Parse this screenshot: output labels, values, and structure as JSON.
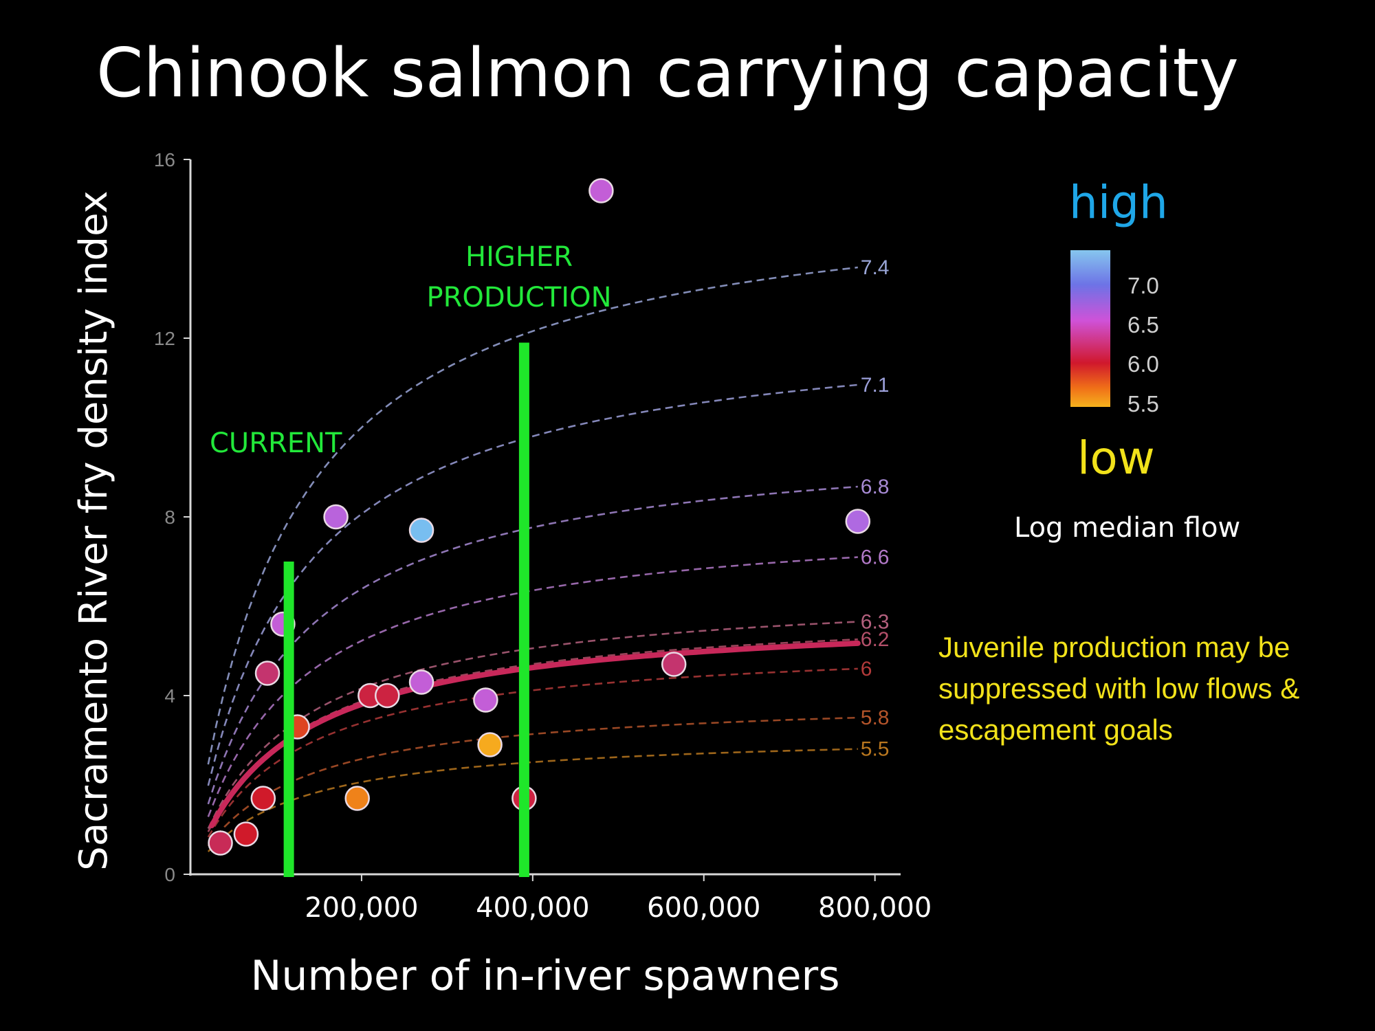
{
  "title": "Chinook salmon carrying capacity",
  "note": "Juvenile production may be suppressed with low flows & escapement goals",
  "legend": {
    "high": "high",
    "low": "low",
    "caption": "Log median flow",
    "ticks": [
      "7.0",
      "6.5",
      "6.0",
      "5.5"
    ]
  },
  "annotations": {
    "current": "CURRENT",
    "higher_1": "HIGHER",
    "higher_2": "PRODUCTION"
  },
  "colors": {
    "current_line": "#1fe62a",
    "fit_curve": "#c8285a"
  },
  "chart_data": {
    "type": "scatter",
    "xlabel": "Number of in-river spawners",
    "ylabel": "Sacramento River fry density index",
    "xlim": [
      0,
      830000
    ],
    "ylim": [
      0,
      16
    ],
    "x_ticks": [
      200000,
      400000,
      600000,
      800000
    ],
    "x_tick_labels": [
      "200,000",
      "400,000",
      "600,000",
      "800,000"
    ],
    "y_ticks": [
      0,
      4,
      8,
      12,
      16
    ],
    "y_tick_labels": [
      "0",
      "4",
      "8",
      "12",
      "16"
    ],
    "reference_lines": [
      {
        "label": "CURRENT",
        "x": 115000,
        "y_max": 7.0
      },
      {
        "label": "HIGHER PRODUCTION",
        "x": 390000,
        "y_max": 11.9
      }
    ],
    "curves": [
      {
        "label": "7.4",
        "asymptote": 15.5,
        "k": 110000,
        "color": "#9aa6d8"
      },
      {
        "label": "7.1",
        "asymptote": 12.5,
        "k": 110000,
        "color": "#9b9fd9"
      },
      {
        "label": "6.8",
        "asymptote": 9.9,
        "k": 110000,
        "color": "#a78ad4"
      },
      {
        "label": "6.6",
        "asymptote": 8.1,
        "k": 110000,
        "color": "#b279c8"
      },
      {
        "label": "6.3",
        "asymptote": 6.45,
        "k": 110000,
        "color": "#b4607e"
      },
      {
        "label": "6.2",
        "asymptote": 6.0,
        "k": 110000,
        "color": "#b4506a"
      },
      {
        "label": "6",
        "asymptote": 5.25,
        "k": 110000,
        "color": "#b23a3a"
      },
      {
        "label": "5.8",
        "asymptote": 4.0,
        "k": 110000,
        "color": "#b4542a"
      },
      {
        "label": "5.5",
        "asymptote": 3.2,
        "k": 110000,
        "color": "#b9771f"
      }
    ],
    "fit_curve": {
      "asymptote": 5.9,
      "k": 110000,
      "x_from": 25000,
      "x_to": 780000
    },
    "points": [
      {
        "x": 35000,
        "y": 0.7,
        "flow": 6.2
      },
      {
        "x": 65000,
        "y": 0.9,
        "flow": 6.0
      },
      {
        "x": 85000,
        "y": 1.7,
        "flow": 6.0
      },
      {
        "x": 90000,
        "y": 4.5,
        "flow": 6.3
      },
      {
        "x": 108000,
        "y": 5.6,
        "flow": 6.6
      },
      {
        "x": 125000,
        "y": 3.3,
        "flow": 5.9
      },
      {
        "x": 170000,
        "y": 8.0,
        "flow": 6.7
      },
      {
        "x": 195000,
        "y": 1.7,
        "flow": 5.7
      },
      {
        "x": 210000,
        "y": 4.0,
        "flow": 6.1
      },
      {
        "x": 230000,
        "y": 4.0,
        "flow": 6.1
      },
      {
        "x": 270000,
        "y": 4.3,
        "flow": 6.6
      },
      {
        "x": 270000,
        "y": 7.7,
        "flow": 7.2
      },
      {
        "x": 345000,
        "y": 3.9,
        "flow": 6.6
      },
      {
        "x": 350000,
        "y": 2.9,
        "flow": 5.5
      },
      {
        "x": 390000,
        "y": 1.7,
        "flow": 6.1
      },
      {
        "x": 480000,
        "y": 15.3,
        "flow": 6.6
      },
      {
        "x": 565000,
        "y": 4.7,
        "flow": 6.3
      },
      {
        "x": 780000,
        "y": 7.9,
        "flow": 6.8
      }
    ]
  }
}
